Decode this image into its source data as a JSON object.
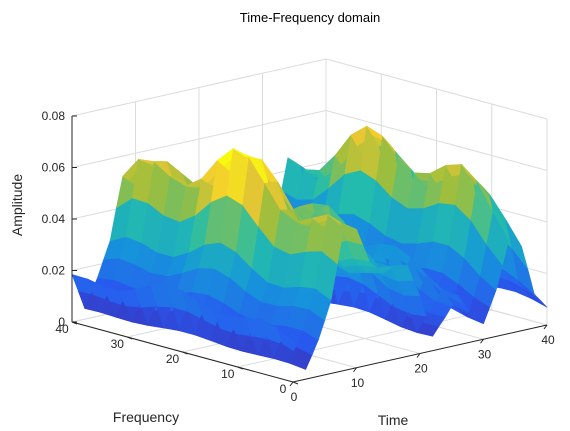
{
  "chart_data": {
    "type": "surface",
    "title": "Time-Frequency domain",
    "xlabel": "Time",
    "ylabel": "Frequency",
    "zlabel": "Amplitude",
    "xlim": [
      0,
      40
    ],
    "ylim": [
      0,
      40
    ],
    "zlim": [
      0,
      0.08
    ],
    "xticks": [
      "0",
      "10",
      "20",
      "30",
      "40"
    ],
    "yticks": [
      "0",
      "10",
      "20",
      "30",
      "40"
    ],
    "zticks": [
      "0",
      "0.02",
      "0.04",
      "0.06",
      "0.08"
    ],
    "grid": true,
    "colormap": "parula",
    "colors": {
      "low": "#3e26a8",
      "mid_low": "#1779e8",
      "mid": "#1fbfaa",
      "mid_high": "#a0bd35",
      "high": "#f9fb0e",
      "axis": "#262626",
      "grid": "#dcdcdc"
    },
    "profile": {
      "note_free": true,
      "time_samples": [
        0,
        2,
        4,
        6,
        8,
        10,
        12,
        14,
        16,
        18,
        20,
        22,
        24,
        26,
        28,
        30,
        32,
        34,
        36,
        38,
        40
      ],
      "amplitude_at_frequency_20": [
        0.022,
        0.005,
        0.018,
        0.035,
        0.067,
        0.064,
        0.048,
        0.042,
        0.045,
        0.046,
        0.03,
        0.008,
        0.018,
        0.03,
        0.018,
        0.01,
        0.03,
        0.06,
        0.052,
        0.02,
        0.01
      ]
    }
  }
}
